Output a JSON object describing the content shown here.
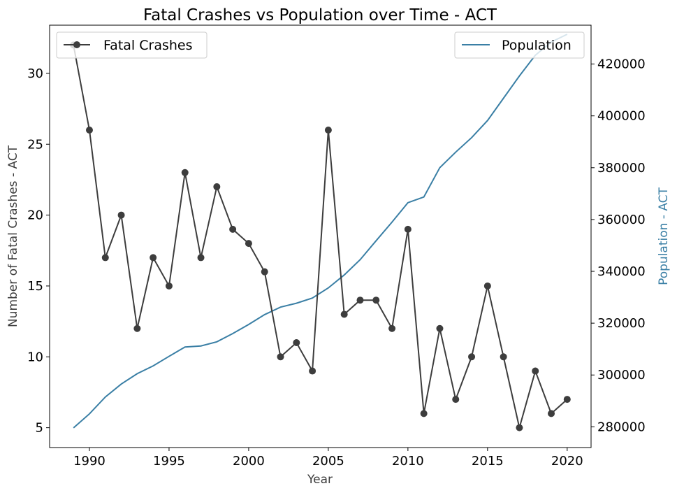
{
  "chart_data": {
    "type": "line",
    "title": "Fatal Crashes vs Population over Time - ACT",
    "xlabel": "Year",
    "ylabel_left": "Number of Fatal Crashes - ACT",
    "ylabel_right": "Population - ACT",
    "xlim": [
      1987.5,
      2021.5
    ],
    "ylim_left": [
      3.6,
      33.4
    ],
    "ylim_right": [
      272000,
      435000
    ],
    "x_ticks": [
      1990,
      1995,
      2000,
      2005,
      2010,
      2015,
      2020
    ],
    "y_left_ticks": [
      5,
      10,
      15,
      20,
      25,
      30
    ],
    "y_right_ticks": [
      280000,
      300000,
      320000,
      340000,
      360000,
      380000,
      400000,
      420000
    ],
    "grid": false,
    "series": [
      {
        "name": "Fatal Crashes",
        "axis": "left",
        "color": "#3d3d3d",
        "marker": "circle",
        "legend_position": "top-left",
        "x": [
          1989,
          1990,
          1991,
          1992,
          1993,
          1994,
          1995,
          1996,
          1997,
          1998,
          1999,
          2000,
          2001,
          2002,
          2003,
          2004,
          2005,
          2006,
          2007,
          2008,
          2009,
          2010,
          2011,
          2012,
          2013,
          2014,
          2015,
          2016,
          2017,
          2018,
          2019,
          2020
        ],
        "values": [
          32,
          26,
          17,
          20,
          12,
          17,
          15,
          23,
          17,
          22,
          19,
          18,
          16,
          10,
          11,
          9,
          26,
          13,
          14,
          14,
          12,
          19,
          6,
          12,
          7,
          10,
          15,
          10,
          5,
          9,
          6,
          7
        ]
      },
      {
        "name": "Population",
        "axis": "right",
        "color": "#3a7fa5",
        "marker": "none",
        "legend_position": "top-right",
        "x": [
          1989,
          1990,
          1991,
          1992,
          1993,
          1994,
          1995,
          1996,
          1997,
          1998,
          1999,
          2000,
          2001,
          2002,
          2003,
          2004,
          2005,
          2006,
          2007,
          2008,
          2009,
          2010,
          2011,
          2012,
          2013,
          2014,
          2015,
          2016,
          2017,
          2018,
          2019,
          2020
        ],
        "values": [
          279600,
          285000,
          291500,
          296500,
          300500,
          303500,
          307200,
          310800,
          311200,
          312800,
          316000,
          319500,
          323300,
          326200,
          327700,
          329700,
          333600,
          338600,
          344500,
          351800,
          359000,
          366500,
          368700,
          380000,
          386000,
          391600,
          398200,
          406800,
          415400,
          423400,
          428500,
          431500
        ]
      }
    ]
  }
}
